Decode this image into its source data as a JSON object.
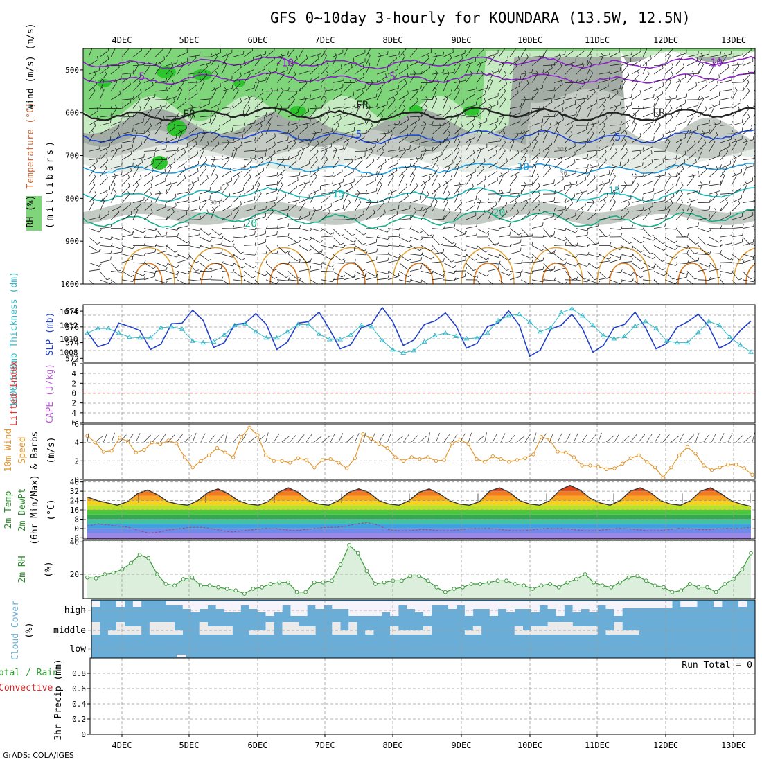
{
  "header": {
    "title": "GFS 0~10day 3-hourly for KOUNDARA (13.5W, 12.5N)",
    "credit": "GrADS: COLA/IGES"
  },
  "colors": {
    "rh_green_light": "#c6eac1",
    "rh_green_mid": "#7fd67a",
    "rh_green_dark": "#2ec42e",
    "rh_grey_light": "#e6ece6",
    "rh_grey_mid": "#c3cbc4",
    "rh_grey_dark": "#a3ada6",
    "temp_purple": "#8a1fc8",
    "temp_blue": "#1c47d8",
    "temp_lightblue": "#1b9be0",
    "temp_teal": "#18b6b6",
    "temp_green": "#16ae86",
    "wind_orange": "#e3a234",
    "wind_darkorange": "#d8741a",
    "slp": "#2340c8",
    "thickness": "#35b8c8",
    "lifted_index": "#dd3333",
    "wind10m": "#e3962c",
    "dewpoint": "#a04a8c",
    "rh2m": "#3c9a3c",
    "rh2m_fill": "#dcefdc",
    "cloud_blue": "#6aaed8",
    "cloud_light": "#eaeaea",
    "cloud_white": "#f6f4fa",
    "precip_green": "#2ca02c",
    "precip_red": "#dd2222"
  },
  "chart_data": [
    {
      "id": "sounding",
      "type": "heatmap",
      "xlabels": [
        "4DEC",
        "5DEC",
        "6DEC",
        "7DEC",
        "8DEC",
        "9DEC",
        "10DEC",
        "11DEC",
        "12DEC",
        "13DEC"
      ],
      "y_axis_labels": [
        "Wind (m/s)",
        "Temperature (°C)",
        "RH (%)"
      ],
      "ylabel_units": "(millibars)",
      "yticks": [
        500,
        600,
        700,
        800,
        900,
        1000
      ],
      "ylim": [
        450,
        1000
      ],
      "contour_labels": [
        {
          "text": "-10",
          "day": 2.4,
          "p": 486,
          "color": "temp_purple"
        },
        {
          "text": "-10",
          "day": 8.7,
          "p": 486,
          "color": "temp_purple"
        },
        {
          "text": "-5",
          "day": 0.25,
          "p": 519,
          "color": "temp_purple"
        },
        {
          "text": "-5",
          "day": 3.95,
          "p": 519,
          "color": "temp_purple"
        },
        {
          "text": "FR",
          "day": 1.0,
          "p": 606,
          "color": "#222222"
        },
        {
          "text": "FR",
          "day": 3.55,
          "p": 585,
          "color": "#222222"
        },
        {
          "text": "FR",
          "day": 7.9,
          "p": 603,
          "color": "#222222"
        },
        {
          "text": "5",
          "day": 3.5,
          "p": 654,
          "color": "temp_blue"
        },
        {
          "text": "5",
          "day": 7.3,
          "p": 660,
          "color": "temp_blue"
        },
        {
          "text": "10",
          "day": 5.9,
          "p": 730,
          "color": "temp_lightblue"
        },
        {
          "text": "15",
          "day": 3.2,
          "p": 793,
          "color": "temp_teal"
        },
        {
          "text": "15",
          "day": 7.25,
          "p": 786,
          "color": "temp_teal"
        },
        {
          "text": "20",
          "day": 1.9,
          "p": 862,
          "color": "temp_green"
        },
        {
          "text": "20",
          "day": 5.55,
          "p": 837,
          "color": "temp_green"
        }
      ],
      "rh_labels": [
        {
          "text": "30",
          "day": 3.0,
          "p": 680
        },
        {
          "text": "30",
          "day": 6.45,
          "p": 685
        },
        {
          "text": "30",
          "day": 6.5,
          "p": 741
        },
        {
          "text": "30",
          "day": 1.35,
          "p": 810
        }
      ]
    },
    {
      "id": "slp_thickness",
      "type": "line",
      "y_left_label": "1000-500mb Thickness (dm)",
      "y_right_label": "SLP (mb)",
      "left_ticks": [
        572,
        574,
        576,
        578
      ],
      "right_ticks": [
        1008,
        1010,
        1012,
        1014
      ],
      "series": [
        {
          "name": "SLP (mb)",
          "ylim": [
            1006.5,
            1015
          ],
          "values": [
            1011,
            1008.8,
            1009.3,
            1012.3,
            1011.8,
            1011.2,
            1008.4,
            1009.2,
            1012.2,
            1012.3,
            1014.2,
            1012.7,
            1008.7,
            1009.4,
            1012.1,
            1012.3,
            1013.7,
            1012.1,
            1008.4,
            1009.5,
            1012.3,
            1012.5,
            1013.9,
            1011.4,
            1008.5,
            1009.1,
            1011.6,
            1012.2,
            1014.6,
            1012.5,
            1009.0,
            1009.8,
            1012.1,
            1012.6,
            1013.8,
            1011.9,
            1008.6,
            1009.3,
            1011.8,
            1012.3,
            1014.1,
            1012.0,
            1007.4,
            1008.3,
            1011.4,
            1012.0,
            1013.6,
            1011.5,
            1008.0,
            1009.0,
            1011.6,
            1012.1,
            1013.9,
            1011.6,
            1008.5,
            1009.3,
            1011.7,
            1012.5,
            1013.6,
            1011.8,
            1008.6,
            1009.4,
            1011.2,
            1012.6
          ]
        },
        {
          "name": "1000-500mb Thickness (dm)",
          "ylim": [
            571.5,
            578.8
          ],
          "values": [
            575.2,
            575.8,
            575.8,
            575.2,
            574.7,
            574.6,
            574.6,
            575.9,
            576.0,
            575.7,
            574.2,
            574.0,
            574.1,
            575.0,
            576.2,
            576.4,
            575.4,
            574.6,
            574.6,
            575.4,
            576.3,
            576.3,
            575.1,
            574.4,
            574.4,
            575.0,
            576.2,
            576.0,
            574.3,
            573.1,
            572.7,
            573.0,
            574.1,
            574.9,
            575.2,
            574.8,
            574.5,
            574.6,
            575.2,
            576.8,
            577.4,
            577.6,
            576.6,
            575.4,
            575.9,
            577.8,
            578.3,
            577.4,
            576.2,
            574.9,
            574.5,
            574.8,
            576.1,
            576.7,
            575.8,
            574.2,
            574.0,
            574.0,
            575.3,
            576.7,
            576.2,
            574.7,
            573.7,
            572.8
          ]
        }
      ]
    },
    {
      "id": "cape_li",
      "type": "line",
      "y_left_label": "Lifted Index",
      "y_right_label": "CAPE (J/kg)",
      "left_ticks": [
        "6",
        "4",
        "2",
        "0",
        "-2",
        "-4",
        "-6"
      ],
      "ylim": [
        -6,
        6
      ],
      "series": [
        {
          "name": "Lifted Index",
          "values": [
            0
          ]
        }
      ]
    },
    {
      "id": "wind10m",
      "type": "line",
      "y_left_label": "10m Wind",
      "y_left_label2": "Speed",
      "y_right_label": "& Barbs",
      "ylabel_units": "(m/s)",
      "yticks": [
        0,
        2,
        4,
        6
      ],
      "ylim": [
        0,
        6
      ],
      "series": [
        {
          "name": "10m Wind Speed",
          "values": [
            4.7,
            4.0,
            3.0,
            3.1,
            4.5,
            4.1,
            2.9,
            3.2,
            4.0,
            3.8,
            4.2,
            3.9,
            2.4,
            1.3,
            2.0,
            2.6,
            3.4,
            2.9,
            2.4,
            4.6,
            5.6,
            4.8,
            2.6,
            2.0,
            2.0,
            1.8,
            2.3,
            2.1,
            1.3,
            2.1,
            2.2,
            1.8,
            1.2,
            2.3,
            4.9,
            4.4,
            3.8,
            3.4,
            2.4,
            2.0,
            2.4,
            2.2,
            2.4,
            2.0,
            2.1,
            3.9,
            4.3,
            3.8,
            2.2,
            1.9,
            2.5,
            2.2,
            1.9,
            2.1,
            2.3,
            2.7,
            4.6,
            4.3,
            3.0,
            2.9,
            2.4,
            1.5,
            1.5,
            1.4,
            1.1,
            1.2,
            1.7,
            2.3,
            2.6,
            1.9,
            1.3,
            0.2,
            1.3,
            2.6,
            3.5,
            2.8,
            1.5,
            1.0,
            1.3,
            1.6,
            1.6,
            1.2,
            0.5
          ]
        }
      ]
    },
    {
      "id": "temp2m",
      "type": "area",
      "y_left_labels": [
        "2m Temp",
        "2m DewPt",
        "(6hr Min/Max)"
      ],
      "ylabel_units": "(°C)",
      "yticks": [
        -8,
        0,
        8,
        16,
        24,
        32,
        40
      ],
      "ytick_labels": [
        "-8",
        "0",
        "8",
        "16",
        "24",
        "32",
        "40"
      ],
      "ylim": [
        -9,
        41
      ],
      "series": [
        {
          "name": "2m Temp",
          "values": [
            27,
            24,
            22,
            20,
            23,
            30,
            33,
            29,
            23,
            21,
            20,
            24,
            31,
            34,
            30,
            24,
            21,
            20,
            23,
            31,
            35,
            31,
            24,
            21,
            20,
            24,
            31,
            34,
            31,
            24,
            21,
            20,
            24,
            31,
            34,
            30,
            24,
            21,
            20,
            23,
            32,
            35,
            31,
            24,
            21,
            20,
            24,
            33,
            37,
            33,
            26,
            22,
            20,
            24,
            32,
            35,
            31,
            24,
            21,
            20,
            24,
            32,
            35,
            30,
            24,
            21,
            19
          ]
        },
        {
          "name": "2m DewPt",
          "values": [
            2,
            4,
            3,
            2,
            1,
            -2,
            -4,
            -3,
            -1,
            0,
            1,
            1,
            0,
            -2,
            -3,
            -2,
            -1,
            0,
            0,
            -1,
            -2,
            -1,
            0,
            1,
            1,
            2,
            4,
            5,
            3,
            -1,
            -2,
            -2,
            -1,
            -1,
            -2,
            -2,
            -1,
            0,
            0,
            0,
            -1,
            -2,
            -2,
            -1,
            0,
            0,
            0,
            -1,
            -2,
            -2,
            -1,
            0,
            0,
            -1,
            -2,
            -2,
            -1,
            0,
            0,
            -1,
            -1,
            0,
            0,
            0,
            1
          ]
        }
      ]
    },
    {
      "id": "rh2m",
      "type": "area",
      "y_left_label": "2m RH",
      "ylabel_units": "(%)",
      "yticks": [
        20,
        40
      ],
      "ylim": [
        5,
        41
      ],
      "series": [
        {
          "name": "2m RH",
          "values": [
            18,
            17.5,
            20,
            21,
            23,
            27,
            32,
            30,
            20,
            14,
            13,
            17,
            18,
            13,
            13,
            12,
            11,
            10,
            8,
            11,
            12,
            14,
            15,
            15,
            9,
            9,
            15,
            15,
            16,
            26,
            38,
            33,
            22,
            14,
            15,
            16,
            16,
            19,
            19,
            16,
            12,
            9,
            11,
            12,
            14,
            14,
            15,
            16,
            16,
            14,
            13,
            11,
            13,
            14,
            12,
            15,
            17,
            20,
            15,
            13,
            12,
            15,
            18,
            19,
            16,
            13,
            12,
            9,
            10,
            14,
            12,
            12,
            9,
            14,
            17,
            23,
            33
          ]
        }
      ]
    },
    {
      "id": "cloud",
      "type": "heatmap",
      "y_left_label": "Cloud Cover",
      "ylabel_units": "(%)",
      "ytick_labels": [
        "high",
        "middle",
        "low"
      ]
    },
    {
      "id": "precip",
      "type": "bar",
      "y_left_label_a": "Total / Rain",
      "y_left_label_b": "Convective",
      "y_left_label_c": "3hr Precip (mm)",
      "yticks": [
        0,
        0.2,
        0.4,
        0.6,
        0.8
      ],
      "ylim": [
        0,
        1
      ],
      "run_total": "Run Total = 0",
      "xlabels": [
        "4DEC",
        "5DEC",
        "6DEC",
        "7DEC",
        "8DEC",
        "9DEC",
        "10DEC",
        "11DEC",
        "12DEC",
        "13DEC"
      ],
      "values": []
    }
  ]
}
